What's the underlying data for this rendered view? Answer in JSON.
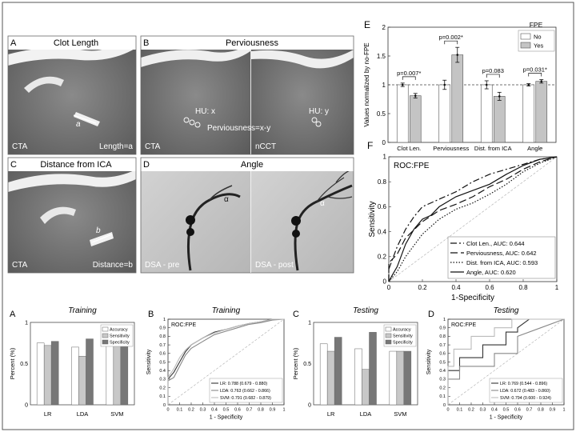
{
  "panels_top": {
    "A": {
      "letter": "A",
      "title": "Clot Length",
      "corner": "CTA",
      "inner_label": "a",
      "measure": "Length=a"
    },
    "B": {
      "letter": "B",
      "title": "Perviousness",
      "left_corner": "CTA",
      "right_corner": "nCCT",
      "hu_left": "HU: x",
      "hu_right": "HU: y",
      "formula": "Perviousness=x-y"
    },
    "C": {
      "letter": "C",
      "title": "Distance from ICA",
      "corner": "CTA",
      "inner_label": "b",
      "measure": "Distance=b"
    },
    "D": {
      "letter": "D",
      "title": "Angle",
      "left_corner": "DSA - pre",
      "right_corner": "DSA - post",
      "angle_mark_left": "α",
      "angle_mark_right": "α"
    }
  },
  "chart_data": [
    {
      "id": "E",
      "type": "bar",
      "letter": "E",
      "ylabel": "Values normalized by no-FPE",
      "ylim": [
        0,
        2
      ],
      "yticks": [
        "0",
        "0.5",
        "1",
        "1.5",
        "2"
      ],
      "grid": false,
      "categories": [
        "Clot Len.",
        "Perviousness",
        "Dist. from ICA",
        "Angle"
      ],
      "legend": {
        "title": "FPE",
        "placement": "top-right",
        "entries": [
          "No",
          "Yes"
        ]
      },
      "series": [
        {
          "name": "No",
          "color": "#ffffff",
          "values": [
            1.0,
            1.0,
            1.0,
            1.0
          ],
          "errors": [
            0.03,
            0.08,
            0.07,
            0.02
          ]
        },
        {
          "name": "Yes",
          "color": "#c4c4c4",
          "values": [
            0.81,
            1.52,
            0.8,
            1.06
          ],
          "errors": [
            0.04,
            0.13,
            0.07,
            0.03
          ]
        }
      ],
      "pvalues": [
        "p=0.007*",
        "p=0.002*",
        "p=0.083",
        "p=0.031*"
      ],
      "reference_line": 1
    },
    {
      "id": "F",
      "type": "line",
      "letter": "F",
      "title": "ROC:FPE",
      "xlabel": "1-Specificity",
      "ylabel": "Sensitivity",
      "xlim": [
        0,
        1
      ],
      "ylim": [
        0,
        1
      ],
      "xticks": [
        "0",
        "0.2",
        "0.4",
        "0.6",
        "0.8",
        "1"
      ],
      "yticks": [
        "0",
        "0.2",
        "0.4",
        "0.6",
        "0.8",
        "1"
      ],
      "legend_placement": "bottom-right",
      "series": [
        {
          "name": "Clot Len., AUC: 0.644",
          "dash": "8 3 2 3",
          "x": [
            0,
            0,
            0.05,
            0.1,
            0.15,
            0.2,
            0.3,
            0.4,
            0.5,
            0.6,
            0.7,
            0.8,
            0.9,
            1.0
          ],
          "y": [
            0,
            0.1,
            0.28,
            0.42,
            0.52,
            0.6,
            0.66,
            0.72,
            0.8,
            0.86,
            0.9,
            0.94,
            0.98,
            1.0
          ]
        },
        {
          "name": "Perviousness, AUC: 0.642",
          "dash": "9 4",
          "x": [
            0,
            0,
            0.05,
            0.1,
            0.2,
            0.3,
            0.4,
            0.5,
            0.6,
            0.7,
            0.8,
            0.9,
            1.0
          ],
          "y": [
            0,
            0.15,
            0.22,
            0.35,
            0.48,
            0.57,
            0.62,
            0.68,
            0.76,
            0.82,
            0.9,
            0.96,
            1.0
          ]
        },
        {
          "name": "Dist. from ICA, AUC: 0.593",
          "dash": "1.5 2",
          "x": [
            0,
            0.05,
            0.1,
            0.2,
            0.3,
            0.4,
            0.5,
            0.6,
            0.7,
            0.8,
            0.9,
            1.0
          ],
          "y": [
            0,
            0.08,
            0.2,
            0.38,
            0.5,
            0.58,
            0.63,
            0.7,
            0.78,
            0.88,
            0.95,
            1.0
          ]
        },
        {
          "name": "Angle, AUC: 0.620",
          "dash": "",
          "x": [
            0,
            0.02,
            0.05,
            0.1,
            0.15,
            0.2,
            0.25,
            0.3,
            0.4,
            0.5,
            0.6,
            0.7,
            0.8,
            0.9,
            1.0
          ],
          "y": [
            0,
            0.05,
            0.12,
            0.3,
            0.42,
            0.5,
            0.53,
            0.6,
            0.68,
            0.73,
            0.78,
            0.86,
            0.93,
            0.98,
            1.0
          ]
        }
      ],
      "diagonal": true
    },
    {
      "id": "A2",
      "type": "bar",
      "letter": "A",
      "title": "Training",
      "ylabel": "Percent (%)",
      "ylim": [
        0,
        1
      ],
      "yticks": [
        "0",
        "0.5",
        "1"
      ],
      "categories": [
        "LR",
        "LDA",
        "SVM"
      ],
      "legend": {
        "placement": "top-right",
        "entries": [
          "Accuracy",
          "Sensitivity",
          "Specificity"
        ]
      },
      "series": [
        {
          "name": "Accuracy",
          "color": "#ffffff",
          "values": [
            0.75,
            0.7,
            0.72
          ]
        },
        {
          "name": "Sensitivity",
          "color": "#c8c8c8",
          "values": [
            0.72,
            0.59,
            0.78
          ]
        },
        {
          "name": "Specificity",
          "color": "#777777",
          "values": [
            0.77,
            0.8,
            0.72
          ]
        }
      ]
    },
    {
      "id": "B2",
      "type": "line",
      "letter": "B",
      "title": "Training",
      "inner_title": "ROC:FPE",
      "xlabel": "1 - Specificity",
      "ylabel": "Sensitivity",
      "xlim": [
        0,
        1
      ],
      "ylim": [
        0,
        1
      ],
      "xticks": [
        "0",
        "0.1",
        "0.2",
        "0.3",
        "0.4",
        "0.5",
        "0.6",
        "0.7",
        "0.8",
        "0.9",
        "1"
      ],
      "yticks": [
        "0",
        "0.1",
        "0.2",
        "0.3",
        "0.4",
        "0.5",
        "0.6",
        "0.7",
        "0.8",
        "0.9",
        "1"
      ],
      "series": [
        {
          "name": "LR: 0.788 (0.679 - 0.880)",
          "color": "#333333",
          "x": [
            0,
            0,
            0.05,
            0.1,
            0.15,
            0.2,
            0.25,
            0.3,
            0.4,
            0.5,
            0.6,
            0.7,
            0.8,
            0.9,
            1.0
          ],
          "y": [
            0,
            0.3,
            0.38,
            0.5,
            0.62,
            0.7,
            0.74,
            0.78,
            0.85,
            0.88,
            0.92,
            0.95,
            0.97,
            1.0,
            1.0
          ]
        },
        {
          "name": "LDA: 0.763 (0.662 - 0.866)",
          "color": "#888888",
          "x": [
            0,
            0,
            0.05,
            0.1,
            0.15,
            0.2,
            0.3,
            0.4,
            0.5,
            0.6,
            0.7,
            0.8,
            0.9,
            1.0
          ],
          "y": [
            0,
            0.28,
            0.32,
            0.45,
            0.58,
            0.66,
            0.74,
            0.82,
            0.86,
            0.9,
            0.94,
            0.96,
            0.99,
            1.0
          ]
        },
        {
          "name": "SVM: 0.791 (0.682 - 0.879)",
          "color": "#bbbbbb",
          "x": [
            0,
            0,
            0.05,
            0.1,
            0.15,
            0.2,
            0.3,
            0.4,
            0.5,
            0.6,
            0.7,
            0.8,
            0.9,
            1.0
          ],
          "y": [
            0,
            0.32,
            0.42,
            0.55,
            0.64,
            0.7,
            0.78,
            0.84,
            0.88,
            0.92,
            0.95,
            0.97,
            1.0,
            1.0
          ]
        }
      ],
      "diagonal": true
    },
    {
      "id": "C2",
      "type": "bar",
      "letter": "C",
      "title": "Testing",
      "ylabel": "Percent (%)",
      "ylim": [
        0,
        1
      ],
      "yticks": [
        "0",
        "0.5",
        "1"
      ],
      "categories": [
        "LR",
        "LDA",
        "SVM"
      ],
      "legend": {
        "placement": "top-right",
        "entries": [
          "Accuracy",
          "Sensitivity",
          "Specificity"
        ]
      },
      "series": [
        {
          "name": "Accuracy",
          "color": "#ffffff",
          "values": [
            0.74,
            0.68,
            0.65
          ]
        },
        {
          "name": "Sensitivity",
          "color": "#c8c8c8",
          "values": [
            0.65,
            0.43,
            0.65
          ]
        },
        {
          "name": "Specificity",
          "color": "#777777",
          "values": [
            0.82,
            0.88,
            0.65
          ]
        }
      ]
    },
    {
      "id": "D2",
      "type": "line",
      "letter": "D",
      "title": "Testing",
      "inner_title": "ROC:FPE",
      "xlabel": "1 - Specificity",
      "ylabel": "Sensitivity",
      "xlim": [
        0,
        1
      ],
      "ylim": [
        0,
        1
      ],
      "xticks": [
        "0",
        "0.1",
        "0.2",
        "0.3",
        "0.4",
        "0.5",
        "0.6",
        "0.7",
        "0.8",
        "0.9",
        "1"
      ],
      "yticks": [
        "0",
        "0.1",
        "0.2",
        "0.3",
        "0.4",
        "0.5",
        "0.6",
        "0.7",
        "0.8",
        "0.9",
        "1"
      ],
      "series": [
        {
          "name": "LR: 0.769 (0.544 - 0.896)",
          "color": "#333333",
          "x": [
            0,
            0,
            0.1,
            0.1,
            0.3,
            0.3,
            0.5,
            0.5,
            0.6,
            0.6,
            0.7,
            1.0
          ],
          "y": [
            0,
            0.4,
            0.4,
            0.55,
            0.55,
            0.7,
            0.7,
            0.85,
            0.85,
            0.9,
            1.0,
            1.0
          ]
        },
        {
          "name": "LDA: 0.672 (0.483 - 0.860)",
          "color": "#888888",
          "x": [
            0,
            0,
            0.1,
            0.1,
            0.4,
            0.4,
            0.6,
            0.6,
            0.8,
            1.0
          ],
          "y": [
            0,
            0.3,
            0.3,
            0.45,
            0.45,
            0.6,
            0.6,
            0.8,
            0.9,
            1.0
          ]
        },
        {
          "name": "SVM: 0.794 (0.600 - 0.924)",
          "color": "#bbbbbb",
          "x": [
            0,
            0,
            0.05,
            0.05,
            0.2,
            0.2,
            0.4,
            0.4,
            0.55,
            0.55,
            0.65,
            1.0
          ],
          "y": [
            0,
            0.45,
            0.45,
            0.65,
            0.65,
            0.8,
            0.8,
            0.9,
            0.9,
            1.0,
            1.0,
            1.0
          ]
        }
      ],
      "diagonal": true
    }
  ]
}
